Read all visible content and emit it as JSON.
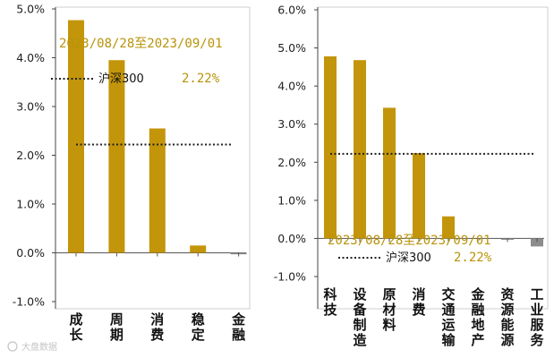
{
  "chart_data": [
    {
      "type": "bar",
      "title": "",
      "date_range": "2023/08/28至2023/09/01",
      "categories": [
        "成长",
        "周期",
        "消费",
        "稳定",
        "金融"
      ],
      "values": [
        4.77,
        3.95,
        2.55,
        0.15,
        -0.03
      ],
      "ylim": [
        -1.0,
        5.0
      ],
      "yticks": [
        "5.0%",
        "4.0%",
        "3.0%",
        "2.0%",
        "1.0%",
        "0.0%",
        "-1.0%"
      ],
      "ytick_values": [
        5,
        4,
        3,
        2,
        1,
        0,
        -1
      ],
      "benchmark": {
        "name": "沪深300",
        "label": "2.22%",
        "value": 2.22
      },
      "colors": {
        "positive": "#c3950a",
        "negative": "#8c8c8c",
        "benchmark": "#222222",
        "date": "#b8930a"
      },
      "grid": false
    },
    {
      "type": "bar",
      "title": "",
      "date_range": "2023/08/28至2023/09/01",
      "categories": [
        "科技",
        "设备制造",
        "原材料",
        "消费",
        "交通运输",
        "金融地产",
        "资源能源",
        "工业服务"
      ],
      "values": [
        4.78,
        4.68,
        3.43,
        2.24,
        0.58,
        0.0,
        -0.02,
        -0.21
      ],
      "ylim": [
        -1.0,
        6.0
      ],
      "yticks": [
        "6.0%",
        "5.0%",
        "4.0%",
        "3.0%",
        "2.0%",
        "1.0%",
        "0.0%",
        "-1.0%"
      ],
      "ytick_values": [
        6,
        5,
        4,
        3,
        2,
        1,
        0,
        -1
      ],
      "benchmark": {
        "name": "沪深300",
        "label": "2.22%",
        "value": 2.22
      },
      "colors": {
        "positive": "#c3950a",
        "negative": "#8c8c8c",
        "benchmark": "#222222",
        "date": "#b8930a"
      },
      "grid": false
    }
  ],
  "watermark": "大盘数据"
}
